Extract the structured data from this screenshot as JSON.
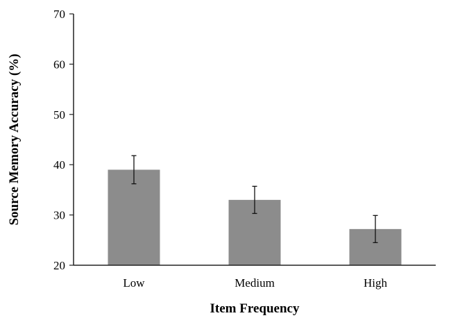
{
  "chart_data": {
    "type": "bar",
    "title": "",
    "xlabel": "Item Frequency",
    "ylabel": "Source Memory Accuracy (%)",
    "categories": [
      "Low",
      "Medium",
      "High"
    ],
    "series": [
      {
        "values": [
          39.0,
          33.0,
          27.2
        ],
        "error": [
          2.8,
          2.7,
          2.7
        ]
      }
    ],
    "ylim": [
      20,
      70
    ],
    "yticks": [
      20,
      30,
      40,
      50,
      60,
      70
    ],
    "grid": false,
    "bar_color": "#8c8c8c"
  }
}
